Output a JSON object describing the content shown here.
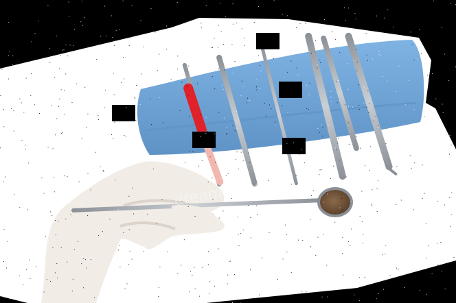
{
  "image": {
    "alt": "",
    "watermark_text": "dreamstime",
    "colors": {
      "background": "#000000",
      "paper": "#ffffff",
      "cloth": "#7fb3e3",
      "cloth_shadow": "#5f93c6",
      "steel": "#c9ced3",
      "steel_dark": "#8b9097",
      "handle_red": "#e0222a",
      "glove": "#f1ece6",
      "glove_shadow": "#dcd3cb",
      "mirror": "#5b3f2a",
      "redaction": "#000000"
    },
    "objects": [
      {
        "name": "background-mask"
      },
      {
        "name": "blue-cloth"
      },
      {
        "name": "dental-probe-red-handle"
      },
      {
        "name": "dental-explorer"
      },
      {
        "name": "dental-scaler-1"
      },
      {
        "name": "dental-scaler-2"
      },
      {
        "name": "dental-scaler-3"
      },
      {
        "name": "gloved-hand"
      },
      {
        "name": "dental-mirror"
      }
    ],
    "redaction_boxes": [
      {
        "name": "redaction-box-1"
      },
      {
        "name": "redaction-box-2"
      },
      {
        "name": "redaction-box-3"
      },
      {
        "name": "redaction-box-4"
      },
      {
        "name": "redaction-box-5"
      }
    ]
  }
}
